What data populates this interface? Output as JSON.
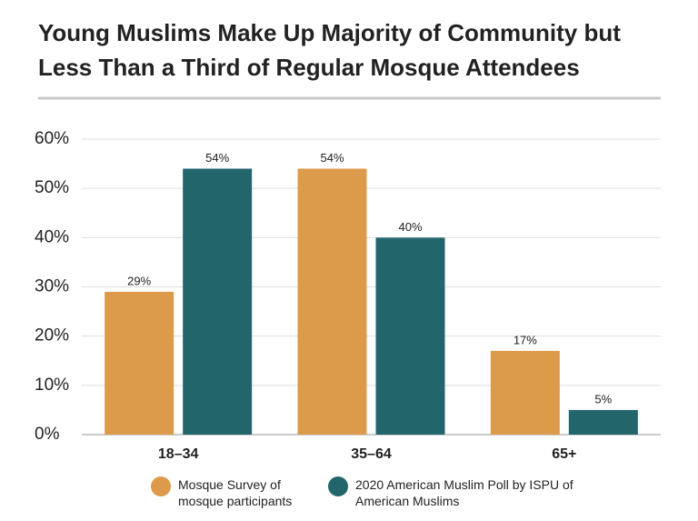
{
  "chart_data": {
    "type": "bar",
    "title": [
      "Young Muslims Make Up Majority of Community but",
      "Less Than a Third of Regular Mosque Attendees"
    ],
    "categories": [
      "18–34",
      "35–64",
      "65+"
    ],
    "series": [
      {
        "name": "Mosque Survey of mosque participants",
        "color": "#dc9a4b",
        "values": [
          29,
          54,
          17
        ],
        "value_labels": [
          "29%",
          "54%",
          "17%"
        ]
      },
      {
        "name": "2020 American Muslim Poll by ISPU of American Muslims",
        "color": "#22666c",
        "values": [
          54,
          40,
          5
        ],
        "value_labels": [
          "54%",
          "40%",
          "5%"
        ]
      }
    ],
    "ylim": [
      0,
      60
    ],
    "yticks": [
      {
        "value": 0,
        "label": "0%"
      },
      {
        "value": 10,
        "label": "10%"
      },
      {
        "value": 20,
        "label": "20%"
      },
      {
        "value": 30,
        "label": "30%"
      },
      {
        "value": 40,
        "label": "40%"
      },
      {
        "value": 50,
        "label": "50%"
      },
      {
        "value": 60,
        "label": "60%"
      }
    ],
    "grid": true,
    "legend": "bottom"
  }
}
